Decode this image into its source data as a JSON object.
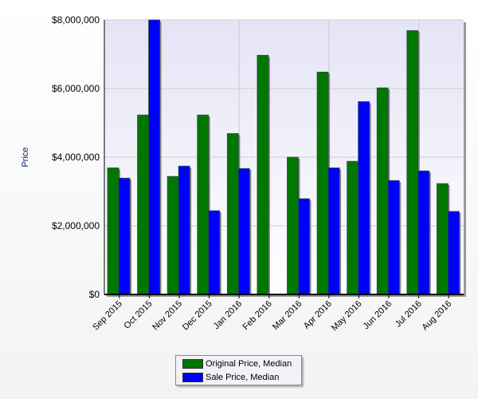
{
  "chart_data": {
    "type": "bar",
    "title": "",
    "xlabel": "",
    "ylabel": "Price",
    "ylim": [
      0,
      8000000
    ],
    "yticks": [
      "$0",
      "$2,000,000",
      "$4,000,000",
      "$6,000,000",
      "$8,000,000"
    ],
    "categories": [
      "Sep 2015",
      "Oct 2015",
      "Nov 2015",
      "Dec 2015",
      "Jan 2016",
      "Feb 2016",
      "Mar 2016",
      "Apr 2016",
      "May 2016",
      "Jun 2016",
      "Jul 2016",
      "Aug 2016"
    ],
    "series": [
      {
        "name": "Original Price, Median",
        "color": "#007800",
        "values": [
          3690000,
          5230000,
          3440000,
          5230000,
          4690000,
          6970000,
          4000000,
          6480000,
          3880000,
          6020000,
          7690000,
          3230000
        ]
      },
      {
        "name": "Sale Price, Median",
        "color": "#0000ff",
        "values": [
          3390000,
          8000000,
          3740000,
          2440000,
          3670000,
          0,
          2790000,
          3690000,
          5620000,
          3320000,
          3600000,
          2420000
        ]
      }
    ],
    "legend_position": "bottom",
    "grid": true
  }
}
